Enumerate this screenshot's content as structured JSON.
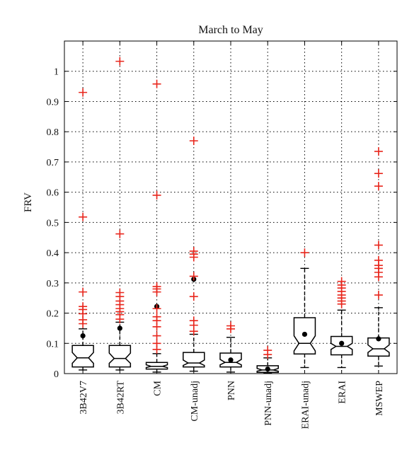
{
  "chart_data": {
    "type": "box",
    "title": "March to May",
    "xlabel": "",
    "ylabel": "FRV",
    "ylim": [
      0,
      1.1
    ],
    "yticks": [
      0,
      0.1,
      0.2,
      0.3,
      0.4,
      0.5,
      0.6,
      0.7,
      0.8,
      0.9,
      1
    ],
    "grid": true,
    "colors": {
      "outlier": "#e8261c",
      "box": "#000000",
      "mean": "#000000",
      "grid": "#000000"
    },
    "categories": [
      "3B42V7",
      "3B42RT",
      "CM",
      "CM-unadj",
      "PNN",
      "PNN-unadj",
      "ERAI-unadj",
      "ERAI",
      "MSWEP"
    ],
    "boxes": [
      {
        "min": 0.012,
        "q1": 0.022,
        "median": 0.052,
        "q3": 0.093,
        "max": 0.148,
        "notch_low": 0.034,
        "notch_high": 0.07,
        "mean": 0.125,
        "outliers": [
          0.165,
          0.178,
          0.198,
          0.212,
          0.222,
          0.27,
          0.518,
          0.93
        ]
      },
      {
        "min": 0.012,
        "q1": 0.022,
        "median": 0.05,
        "q3": 0.093,
        "max": 0.17,
        "notch_low": 0.034,
        "notch_high": 0.068,
        "mean": 0.15,
        "outliers": [
          0.18,
          0.195,
          0.205,
          0.215,
          0.228,
          0.24,
          0.255,
          0.268,
          0.462,
          1.033
        ]
      },
      {
        "min": 0.005,
        "q1": 0.015,
        "median": 0.024,
        "q3": 0.037,
        "max": 0.066,
        "notch_low": 0.02,
        "notch_high": 0.029,
        "mean": 0.222,
        "outliers": [
          0.08,
          0.1,
          0.125,
          0.155,
          0.175,
          0.188,
          0.215,
          0.27,
          0.28,
          0.288,
          0.59,
          0.958
        ]
      },
      {
        "min": 0.008,
        "q1": 0.022,
        "median": 0.035,
        "q3": 0.07,
        "max": 0.13,
        "notch_low": 0.027,
        "notch_high": 0.045,
        "mean": 0.312,
        "outliers": [
          0.14,
          0.16,
          0.175,
          0.255,
          0.322,
          0.385,
          0.395,
          0.405,
          0.77
        ]
      },
      {
        "min": 0.005,
        "q1": 0.022,
        "median": 0.037,
        "q3": 0.068,
        "max": 0.12,
        "notch_low": 0.029,
        "notch_high": 0.047,
        "mean": 0.045,
        "outliers": [
          0.148,
          0.158
        ]
      },
      {
        "min": 0.002,
        "q1": 0.004,
        "median": 0.012,
        "q3": 0.026,
        "max": 0.052,
        "notch_low": 0.008,
        "notch_high": 0.017,
        "mean": 0.015,
        "outliers": [
          0.063,
          0.077
        ]
      },
      {
        "min": 0.02,
        "q1": 0.065,
        "median": 0.1,
        "q3": 0.185,
        "max": 0.348,
        "notch_low": 0.075,
        "notch_high": 0.125,
        "mean": 0.13,
        "outliers": [
          0.4
        ]
      },
      {
        "min": 0.02,
        "q1": 0.062,
        "median": 0.09,
        "q3": 0.123,
        "max": 0.21,
        "notch_low": 0.08,
        "notch_high": 0.1,
        "mean": 0.1,
        "outliers": [
          0.23,
          0.24,
          0.25,
          0.26,
          0.272,
          0.283,
          0.293,
          0.305
        ]
      },
      {
        "min": 0.025,
        "q1": 0.058,
        "median": 0.082,
        "q3": 0.118,
        "max": 0.218,
        "notch_low": 0.07,
        "notch_high": 0.095,
        "mean": 0.115,
        "outliers": [
          0.26,
          0.32,
          0.335,
          0.348,
          0.358,
          0.375,
          0.425,
          0.62,
          0.662,
          0.735
        ]
      }
    ]
  }
}
